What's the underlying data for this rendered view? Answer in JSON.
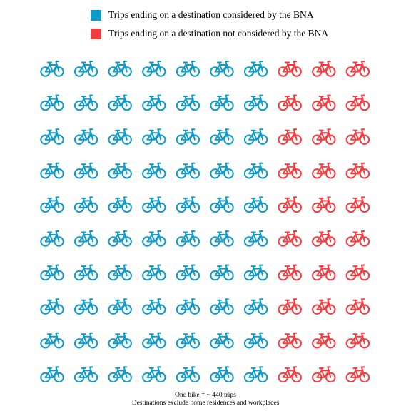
{
  "chart_data": {
    "type": "pictograph",
    "icon": "bicycle-icon",
    "series": [
      {
        "name": "Trips ending on a destination considered by the BNA",
        "color": "#0f9ac9",
        "icons": 70
      },
      {
        "name": "Trips ending on a destination not considered by the BNA",
        "color": "#f63b3f",
        "icons": 30
      }
    ],
    "grid": {
      "rows": 10,
      "columns": 10,
      "fill_order": "column-major"
    },
    "legend_position": "top",
    "unit_note": "One bike = ~ 440 trips",
    "footnote": "Destinations exclude home residences and workplaces"
  }
}
